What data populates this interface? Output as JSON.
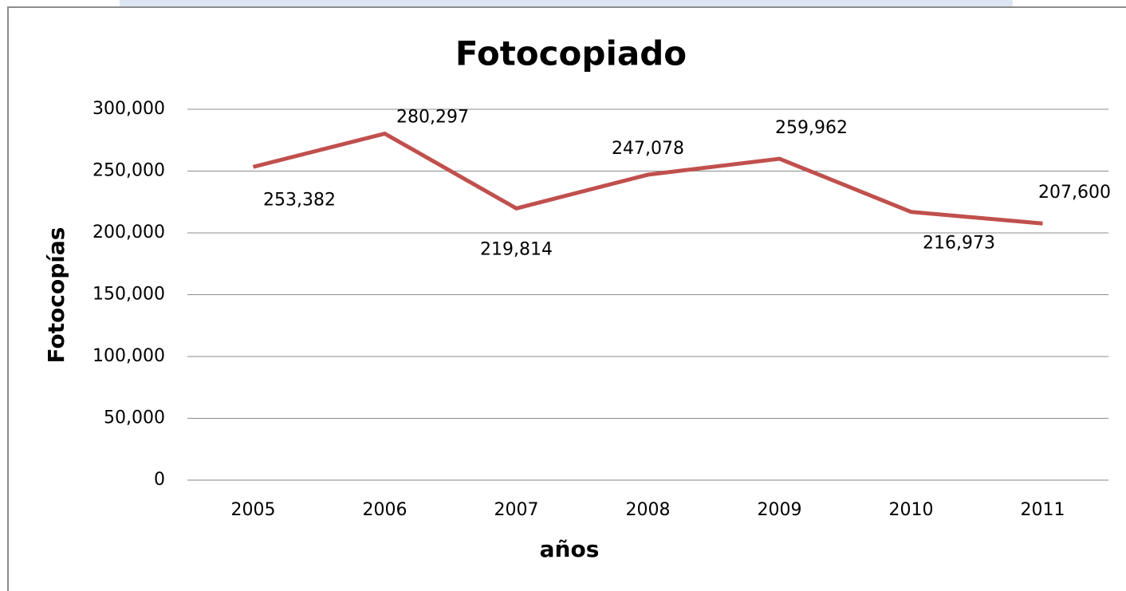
{
  "chart_data": {
    "type": "line",
    "title": "Fotocopiado",
    "x_label": "años",
    "y_label": "Fotocopías",
    "categories": [
      "2005",
      "2006",
      "2007",
      "2008",
      "2009",
      "2010",
      "2011"
    ],
    "series": [
      {
        "name": "Fotocopias",
        "color": "#c0504d",
        "values": [
          253382,
          280297,
          219814,
          247078,
          259962,
          216973,
          207600
        ],
        "value_labels": [
          "253,382",
          "280,297",
          "219,814",
          "247,078",
          "259,962",
          "216,973",
          "207,600"
        ]
      }
    ],
    "ylim": [
      0,
      300000
    ],
    "yticks": [
      {
        "value": 0,
        "label": "0"
      },
      {
        "value": 50000,
        "label": "50,000"
      },
      {
        "value": 100000,
        "label": "100,000"
      },
      {
        "value": 150000,
        "label": "150,000"
      },
      {
        "value": 200000,
        "label": "200,000"
      },
      {
        "value": 250000,
        "label": "250,000"
      },
      {
        "value": 300000,
        "label": "300,000"
      }
    ],
    "grid": true
  }
}
